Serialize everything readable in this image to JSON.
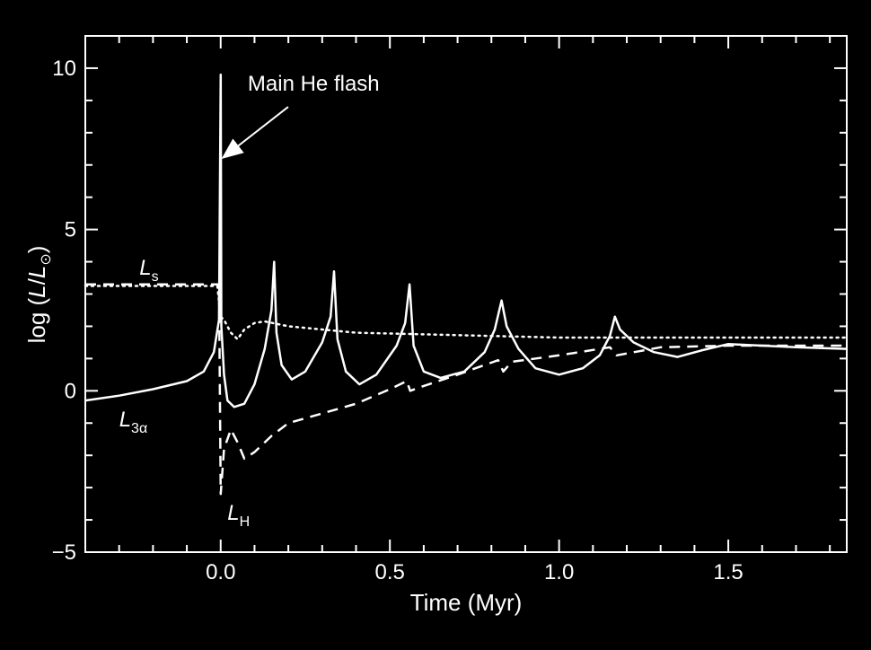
{
  "chart_data": {
    "type": "line",
    "title": "",
    "xlabel": "Time (Myr)",
    "ylabel_prefix": "log (",
    "ylabel_L": "L",
    "ylabel_slash": "/",
    "ylabel_Lsun": "L",
    "ylabel_sun": "⊙",
    "ylabel_suffix": ")",
    "xlim": [
      -0.4,
      1.85
    ],
    "ylim": [
      -5,
      11
    ],
    "xticks": [
      {
        "value": 0.0,
        "label": "0.0"
      },
      {
        "value": 0.5,
        "label": "0.5"
      },
      {
        "value": 1.0,
        "label": "1.0"
      },
      {
        "value": 1.5,
        "label": "1.5"
      }
    ],
    "yticks": [
      {
        "value": -5,
        "label": "−5"
      },
      {
        "value": 0,
        "label": "0"
      },
      {
        "value": 5,
        "label": "5"
      },
      {
        "value": 10,
        "label": "10"
      }
    ],
    "grid": false,
    "annotation": {
      "text": "Main He flash",
      "arrow_to": [
        0.0,
        7.2
      ],
      "text_at": [
        0.08,
        9.3
      ]
    },
    "series": [
      {
        "name": "L3α",
        "label_main": "L",
        "label_sub": "3α",
        "label_at": [
          -0.3,
          -1.1
        ],
        "style": "solid",
        "points": [
          [
            -0.4,
            -0.3
          ],
          [
            -0.3,
            -0.15
          ],
          [
            -0.2,
            0.05
          ],
          [
            -0.1,
            0.3
          ],
          [
            -0.05,
            0.6
          ],
          [
            -0.02,
            1.2
          ],
          [
            -0.005,
            2.2
          ],
          [
            0.0,
            9.8
          ],
          [
            0.002,
            2.0
          ],
          [
            0.01,
            0.5
          ],
          [
            0.02,
            -0.3
          ],
          [
            0.04,
            -0.5
          ],
          [
            0.07,
            -0.4
          ],
          [
            0.1,
            0.2
          ],
          [
            0.13,
            1.3
          ],
          [
            0.15,
            2.5
          ],
          [
            0.158,
            4.0
          ],
          [
            0.165,
            1.8
          ],
          [
            0.18,
            0.8
          ],
          [
            0.21,
            0.35
          ],
          [
            0.25,
            0.6
          ],
          [
            0.3,
            1.5
          ],
          [
            0.325,
            2.3
          ],
          [
            0.335,
            3.7
          ],
          [
            0.345,
            1.6
          ],
          [
            0.37,
            0.6
          ],
          [
            0.41,
            0.2
          ],
          [
            0.46,
            0.5
          ],
          [
            0.52,
            1.4
          ],
          [
            0.545,
            2.1
          ],
          [
            0.558,
            3.3
          ],
          [
            0.57,
            1.4
          ],
          [
            0.6,
            0.6
          ],
          [
            0.65,
            0.4
          ],
          [
            0.72,
            0.6
          ],
          [
            0.78,
            1.2
          ],
          [
            0.81,
            1.9
          ],
          [
            0.83,
            2.8
          ],
          [
            0.845,
            2.0
          ],
          [
            0.88,
            1.3
          ],
          [
            0.93,
            0.7
          ],
          [
            1.0,
            0.5
          ],
          [
            1.07,
            0.7
          ],
          [
            1.12,
            1.1
          ],
          [
            1.15,
            1.7
          ],
          [
            1.165,
            2.3
          ],
          [
            1.18,
            1.9
          ],
          [
            1.22,
            1.5
          ],
          [
            1.28,
            1.2
          ],
          [
            1.35,
            1.05
          ],
          [
            1.42,
            1.25
          ],
          [
            1.5,
            1.45
          ],
          [
            1.6,
            1.4
          ],
          [
            1.7,
            1.35
          ],
          [
            1.85,
            1.3
          ]
        ]
      },
      {
        "name": "LH",
        "label_main": "L",
        "label_sub": "H",
        "label_at": [
          0.02,
          -4.0
        ],
        "style": "dashed",
        "points": [
          [
            -0.4,
            3.3
          ],
          [
            -0.02,
            3.3
          ],
          [
            -0.005,
            3.3
          ],
          [
            0.0,
            -3.2
          ],
          [
            0.01,
            -1.8
          ],
          [
            0.03,
            -1.2
          ],
          [
            0.05,
            -1.6
          ],
          [
            0.07,
            -2.1
          ],
          [
            0.1,
            -1.9
          ],
          [
            0.15,
            -1.4
          ],
          [
            0.2,
            -1.0
          ],
          [
            0.3,
            -0.7
          ],
          [
            0.4,
            -0.4
          ],
          [
            0.5,
            0.05
          ],
          [
            0.55,
            0.3
          ],
          [
            0.56,
            0.0
          ],
          [
            0.6,
            0.15
          ],
          [
            0.7,
            0.5
          ],
          [
            0.82,
            0.95
          ],
          [
            0.835,
            0.6
          ],
          [
            0.86,
            0.9
          ],
          [
            1.0,
            1.1
          ],
          [
            1.15,
            1.35
          ],
          [
            1.17,
            1.1
          ],
          [
            1.3,
            1.35
          ],
          [
            1.5,
            1.4
          ],
          [
            1.85,
            1.4
          ]
        ]
      },
      {
        "name": "Ls",
        "label_main": "L",
        "label_sub": "s",
        "label_at": [
          -0.24,
          3.6
        ],
        "style": "dotted",
        "points": [
          [
            -0.4,
            3.25
          ],
          [
            -0.01,
            3.25
          ],
          [
            0.0,
            2.3
          ],
          [
            0.01,
            2.2
          ],
          [
            0.03,
            1.8
          ],
          [
            0.05,
            1.6
          ],
          [
            0.07,
            1.9
          ],
          [
            0.1,
            2.1
          ],
          [
            0.13,
            2.15
          ],
          [
            0.2,
            2.0
          ],
          [
            0.3,
            1.9
          ],
          [
            0.4,
            1.8
          ],
          [
            0.6,
            1.75
          ],
          [
            0.8,
            1.7
          ],
          [
            1.0,
            1.65
          ],
          [
            1.2,
            1.65
          ],
          [
            1.5,
            1.65
          ],
          [
            1.85,
            1.65
          ]
        ]
      }
    ]
  }
}
